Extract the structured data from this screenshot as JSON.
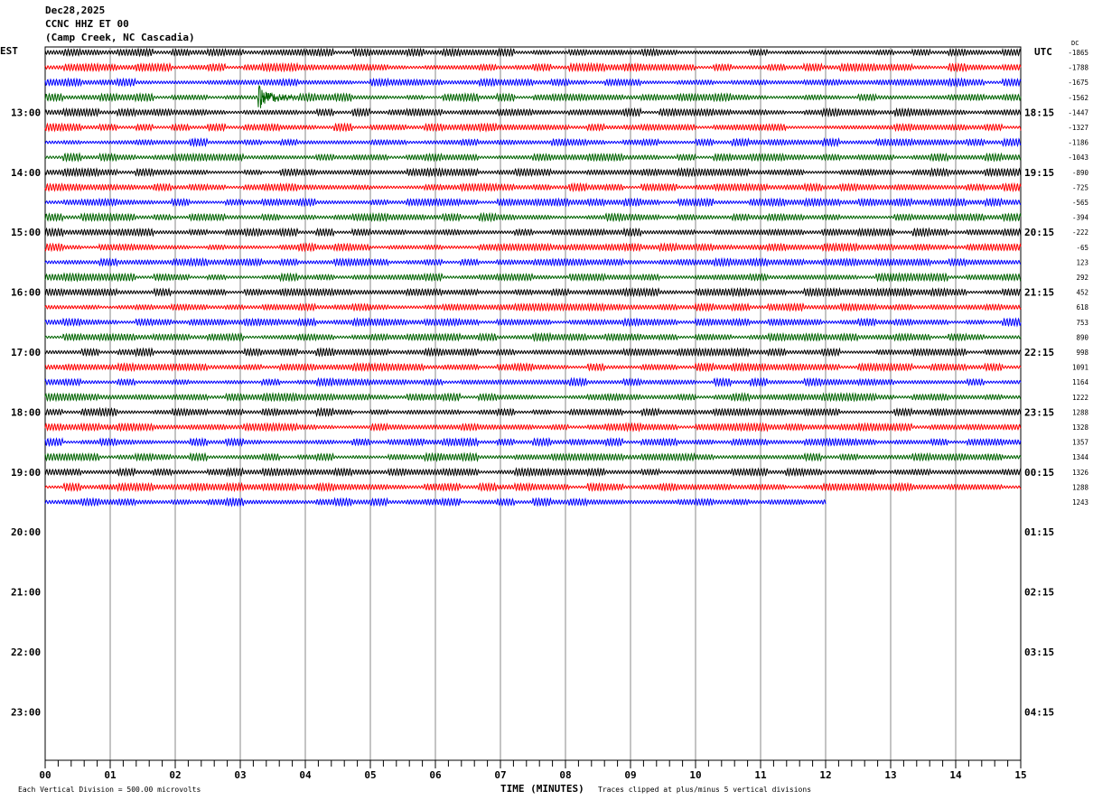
{
  "header": {
    "date": "Dec28,2025",
    "station": "CCNC HHZ ET 00",
    "location": "(Camp Creek, NC Cascadia)"
  },
  "chart_data": {
    "type": "line",
    "subtype": "helicorder seismogram",
    "xlabel": "TIME (MINUTES)",
    "xlim": [
      0,
      15
    ],
    "x_ticks": [
      "00",
      "01",
      "02",
      "03",
      "04",
      "05",
      "06",
      "07",
      "08",
      "09",
      "10",
      "11",
      "12",
      "13",
      "14",
      "15"
    ],
    "left_axis_title": "EST",
    "right_axis_title": "UTC",
    "dc_title": "DC",
    "left_hour_labels": [
      "13:00",
      "14:00",
      "15:00",
      "16:00",
      "17:00",
      "18:00",
      "19:00",
      "20:00",
      "21:00",
      "22:00",
      "23:00"
    ],
    "right_hour_labels": [
      "18:15",
      "19:15",
      "20:15",
      "21:15",
      "22:15",
      "23:15",
      "00:15",
      "01:15",
      "02:15",
      "03:15",
      "04:15"
    ],
    "trace_colors": [
      "#000000",
      "#ff0000",
      "#0000ff",
      "#006400"
    ],
    "trace_minutes": 15,
    "last_trace_end_minute": 12,
    "dc_offsets": [
      -1865,
      -1788,
      -1675,
      -1562,
      -1447,
      -1327,
      -1186,
      -1043,
      -890,
      -725,
      -565,
      -394,
      -222,
      -65,
      123,
      292,
      452,
      618,
      753,
      890,
      998,
      1091,
      1164,
      1222,
      1288,
      1328,
      1357,
      1344,
      1326,
      1288,
      1243
    ],
    "grid": true
  },
  "footer": {
    "scale": "Each Vertical Division =  500.00 microvolts",
    "clip": "Traces clipped at plus/minus 5 vertical divisions"
  }
}
